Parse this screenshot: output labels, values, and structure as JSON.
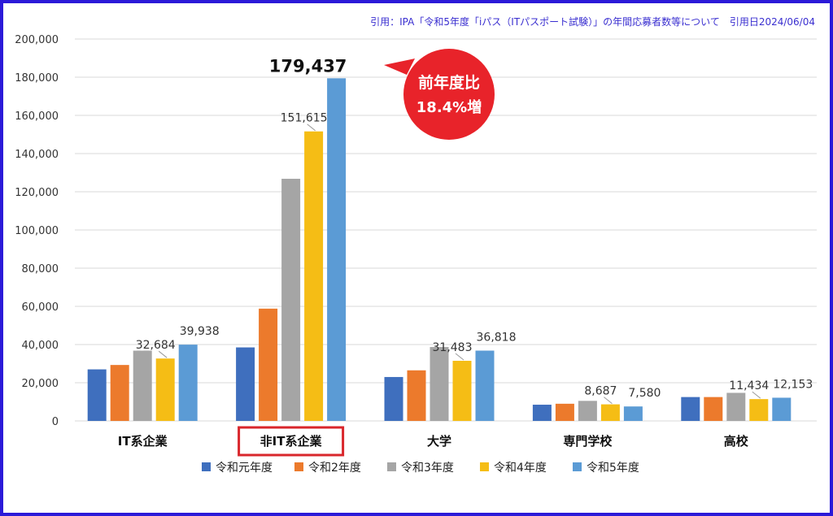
{
  "citation": "引用：IPA「令和5年度「iパス（ITパスポート試験）」の年間応募者数等について　引用日2024/06/04",
  "colors": {
    "frame": "#2b1ad8",
    "callout": "#e8232a",
    "highlight_box": "#d9262b"
  },
  "chart_data": {
    "type": "bar",
    "categories": [
      "IT系企業",
      "非IT系企業",
      "大学",
      "専門学校",
      "高校"
    ],
    "y_ticks": [
      "0",
      "20,000",
      "40,000",
      "60,000",
      "80,000",
      "100,000",
      "120,000",
      "140,000",
      "160,000",
      "180,000",
      "200,000"
    ],
    "ylim": [
      0,
      200000
    ],
    "grid": true,
    "legend_position": "bottom",
    "series": [
      {
        "name": "令和元年度",
        "color": "#3f6fbe",
        "values": [
          27000,
          38500,
          23000,
          8500,
          12500
        ]
      },
      {
        "name": "令和2年度",
        "color": "#ec7a2c",
        "values": [
          29300,
          58800,
          26500,
          9000,
          12500
        ]
      },
      {
        "name": "令和3年度",
        "color": "#a5a5a5",
        "values": [
          36800,
          126800,
          38700,
          10500,
          14700
        ]
      },
      {
        "name": "令和4年度",
        "color": "#f5bd15",
        "values": [
          32684,
          151615,
          31483,
          8687,
          11434
        ]
      },
      {
        "name": "令和5年度",
        "color": "#5b9bd5",
        "values": [
          39938,
          179437,
          36818,
          7580,
          12153
        ]
      }
    ],
    "data_labels": [
      {
        "text": "32,684",
        "category": 0,
        "series": 3
      },
      {
        "text": "39,938",
        "category": 0,
        "series": 4
      },
      {
        "text": "151,615",
        "category": 1,
        "series": 3
      },
      {
        "text": "179,437",
        "category": 1,
        "series": 4,
        "emphasis": true
      },
      {
        "text": "31,483",
        "category": 2,
        "series": 3
      },
      {
        "text": "36,818",
        "category": 2,
        "series": 4
      },
      {
        "text": "8,687",
        "category": 3,
        "series": 3
      },
      {
        "text": "7,580",
        "category": 3,
        "series": 4
      },
      {
        "text": "11,434",
        "category": 4,
        "series": 3
      },
      {
        "text": "12,153",
        "category": 4,
        "series": 4
      }
    ],
    "highlighted_category": 1,
    "callout": {
      "line1": "前年度比",
      "line2": "18.4%増"
    }
  }
}
